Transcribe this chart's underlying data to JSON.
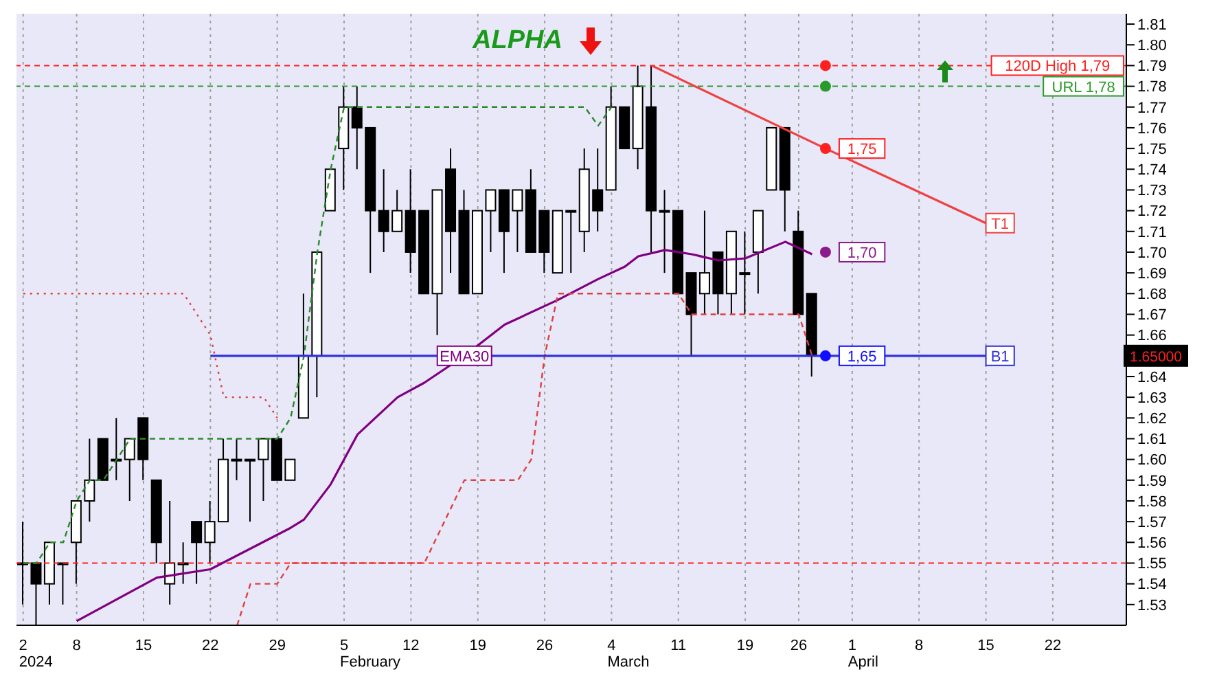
{
  "chart_data": {
    "type": "candlestick",
    "title": "ALPHA",
    "categories": [
      "2",
      null,
      null,
      null,
      "8",
      null,
      null,
      null,
      null,
      "15",
      null,
      null,
      null,
      null,
      "22",
      null,
      null,
      null,
      null,
      "29",
      null,
      null,
      null,
      null,
      "5",
      null,
      null,
      null,
      null,
      "12",
      null,
      null,
      null,
      null,
      "19",
      null,
      null,
      null,
      null,
      "26",
      null,
      null,
      null,
      null,
      "4",
      null,
      null,
      null,
      null,
      "11",
      null,
      null,
      null,
      null,
      "19",
      null,
      null,
      null,
      "26",
      null,
      null,
      null,
      "1",
      null,
      null,
      null,
      null,
      "8",
      null,
      null,
      null,
      null,
      "15",
      null,
      null,
      null,
      null,
      "22",
      null,
      null,
      null,
      null,
      null
    ],
    "ylim": [
      1.52,
      1.815
    ],
    "yticks": [
      1.53,
      1.54,
      1.55,
      1.56,
      1.57,
      1.58,
      1.59,
      {
        "value": 1.6,
        "label": "1.60"
      },
      1.61,
      1.62,
      1.63,
      1.64,
      {
        "value": 1.65,
        "label": null
      },
      1.66,
      1.67,
      1.68,
      1.69,
      {
        "value": 1.7,
        "label": "1.70"
      },
      1.71,
      1.72,
      1.73,
      1.74,
      1.75,
      1.76,
      1.77,
      1.78,
      1.79,
      {
        "value": 1.8,
        "label": "1.80"
      },
      1.81
    ],
    "grid": "x",
    "series": [
      {
        "color": "#000000",
        "ohlc": [
          [
            1.55,
            1.57,
            1.53,
            1.55
          ],
          [
            1.55,
            1.55,
            1.52,
            1.54
          ],
          [
            1.54,
            1.56,
            1.53,
            1.56
          ],
          [
            1.55,
            1.55,
            1.53,
            1.55
          ],
          [
            1.56,
            1.58,
            1.54,
            1.58
          ],
          [
            1.58,
            1.61,
            1.57,
            1.59
          ],
          [
            1.61,
            1.61,
            1.59,
            1.59
          ],
          [
            1.6,
            1.62,
            1.59,
            1.6
          ],
          [
            1.6,
            1.61,
            1.58,
            1.61
          ],
          [
            1.62,
            1.62,
            1.59,
            1.6
          ],
          [
            1.59,
            1.59,
            1.55,
            1.56
          ],
          [
            1.54,
            1.58,
            1.53,
            1.55
          ],
          [
            1.55,
            1.56,
            1.54,
            1.55
          ],
          [
            1.57,
            1.57,
            1.54,
            1.56
          ],
          [
            1.56,
            1.58,
            1.55,
            1.57
          ],
          [
            1.57,
            1.61,
            1.57,
            1.6
          ],
          [
            1.6,
            1.61,
            1.59,
            1.6
          ],
          [
            1.6,
            1.6,
            1.57,
            1.6
          ],
          [
            1.6,
            1.61,
            1.58,
            1.61
          ],
          [
            1.61,
            1.61,
            1.59,
            1.59
          ],
          [
            1.59,
            1.6,
            1.59,
            1.6
          ],
          [
            1.62,
            1.68,
            1.62,
            1.65
          ],
          [
            1.65,
            1.7,
            1.63,
            1.7
          ],
          [
            1.72,
            1.74,
            1.72,
            1.74
          ],
          [
            1.75,
            1.78,
            1.73,
            1.77
          ],
          [
            1.77,
            1.78,
            1.74,
            1.76
          ],
          [
            1.76,
            1.76,
            1.69,
            1.72
          ],
          [
            1.72,
            1.74,
            1.7,
            1.71
          ],
          [
            1.71,
            1.73,
            1.71,
            1.72
          ],
          [
            1.72,
            1.74,
            1.69,
            1.7
          ],
          [
            1.72,
            1.72,
            1.68,
            1.68
          ],
          [
            1.68,
            1.73,
            1.66,
            1.73
          ],
          [
            1.74,
            1.75,
            1.69,
            1.71
          ],
          [
            1.72,
            1.73,
            1.68,
            1.68
          ],
          [
            1.68,
            1.72,
            1.68,
            1.72
          ],
          [
            1.72,
            1.73,
            1.7,
            1.73
          ],
          [
            1.73,
            1.73,
            1.69,
            1.71
          ],
          [
            1.72,
            1.73,
            1.7,
            1.73
          ],
          [
            1.73,
            1.74,
            1.7,
            1.7
          ],
          [
            1.72,
            1.72,
            1.69,
            1.7
          ],
          [
            1.69,
            1.72,
            1.69,
            1.72
          ],
          [
            1.72,
            1.72,
            1.69,
            1.72
          ],
          [
            1.71,
            1.75,
            1.7,
            1.74
          ],
          [
            1.73,
            1.75,
            1.71,
            1.72
          ],
          [
            1.73,
            1.78,
            1.73,
            1.77
          ],
          [
            1.77,
            1.77,
            1.75,
            1.75
          ],
          [
            1.75,
            1.79,
            1.74,
            1.78
          ],
          [
            1.77,
            1.79,
            1.7,
            1.72
          ],
          [
            1.72,
            1.73,
            1.69,
            1.72
          ],
          [
            1.72,
            1.72,
            1.68,
            1.68
          ],
          [
            1.69,
            1.69,
            1.65,
            1.67
          ],
          [
            1.68,
            1.72,
            1.67,
            1.69
          ],
          [
            1.7,
            1.7,
            1.67,
            1.68
          ],
          [
            1.68,
            1.71,
            1.67,
            1.71
          ],
          [
            1.69,
            1.71,
            1.67,
            1.69
          ],
          [
            1.7,
            1.72,
            1.68,
            1.72
          ],
          [
            1.73,
            1.76,
            1.73,
            1.76
          ],
          [
            1.76,
            1.76,
            1.71,
            1.73
          ],
          [
            1.71,
            1.72,
            1.67,
            1.67
          ],
          [
            1.68,
            1.68,
            1.64,
            1.65
          ],
          null,
          null,
          null,
          null,
          null,
          null,
          null,
          null,
          null,
          null,
          null,
          null,
          null,
          null,
          null,
          null,
          null,
          null,
          null,
          null,
          null,
          null,
          null
        ],
        "colors": [
          "#ffffff",
          "#000000",
          "#ffffff",
          "#ffffff",
          "#ffffff",
          "#ffffff",
          "#000000",
          "#ffffff",
          "#ffffff",
          "#000000",
          "#000000",
          "#ffffff",
          "#ffffff",
          "#000000",
          "#ffffff",
          "#ffffff",
          "#ffffff",
          "#ffffff",
          "#ffffff",
          "#000000",
          "#ffffff",
          "#ffffff",
          "#ffffff",
          "#ffffff",
          "#ffffff",
          "#000000",
          "#000000",
          "#000000",
          "#ffffff",
          "#000000",
          "#000000",
          "#ffffff",
          "#000000",
          "#000000",
          "#ffffff",
          "#ffffff",
          "#000000",
          "#ffffff",
          "#000000",
          "#000000",
          "#ffffff",
          "#ffffff",
          "#ffffff",
          "#000000",
          "#ffffff",
          "#000000",
          "#ffffff",
          "#000000",
          "#ffffff",
          "#000000",
          "#000000",
          "#ffffff",
          "#000000",
          "#ffffff",
          "#ffffff",
          "#ffffff",
          "#ffffff",
          "#000000",
          "#000000",
          "#000000",
          null,
          null,
          null,
          null,
          null,
          null,
          null,
          null,
          null,
          null,
          null,
          null,
          null,
          null,
          null,
          null,
          null,
          null,
          null,
          null,
          null,
          null,
          null
        ]
      },
      {
        "type": "line",
        "name": "EMA30",
        "color": "#800080",
        "line_style": "solid",
        "values": [
          null,
          null,
          null,
          null,
          1.522,
          null,
          null,
          null,
          null,
          null,
          1.543,
          null,
          null,
          null,
          1.547,
          null,
          null,
          null,
          null,
          null,
          1.567,
          1.571,
          null,
          1.588,
          null,
          1.612,
          null,
          null,
          1.63,
          null,
          1.637,
          null,
          null,
          1.65,
          null,
          null,
          1.665,
          null,
          null,
          null,
          1.677,
          null,
          null,
          1.687,
          null,
          1.693,
          1.698,
          null,
          1.701,
          null,
          1.699,
          null,
          1.696,
          null,
          1.697,
          null,
          null,
          1.705,
          null,
          1.699,
          null,
          null,
          null,
          null,
          null,
          null,
          null,
          null,
          null,
          null,
          null,
          null,
          null,
          null,
          null,
          null,
          null,
          null,
          null,
          null,
          null,
          null,
          null
        ]
      },
      {
        "type": "line",
        "color": "#2a8a2a",
        "line_style": "dashed",
        "values": [
          1.55,
          1.55,
          1.56,
          1.56,
          1.58,
          1.59,
          1.59,
          1.6,
          1.61,
          1.61,
          null,
          null,
          null,
          null,
          null,
          null,
          null,
          null,
          null,
          1.61,
          1.62,
          1.65,
          1.7,
          1.74,
          1.77,
          null,
          null,
          null,
          null,
          null,
          null,
          null,
          null,
          null,
          null,
          null,
          null,
          null,
          null,
          null,
          null,
          null,
          1.77,
          1.761,
          1.77,
          null,
          null,
          null,
          null,
          null,
          null,
          null,
          null,
          null,
          null,
          null,
          null,
          null,
          null,
          null,
          null,
          null,
          null,
          null,
          null,
          null,
          null,
          null,
          null,
          null,
          null,
          null,
          null,
          null,
          null,
          null,
          null,
          null,
          null,
          null,
          null,
          null,
          null
        ]
      },
      {
        "type": "line",
        "color": "#e04040",
        "line_style": "dotted",
        "values": [
          1.68,
          null,
          null,
          null,
          null,
          null,
          null,
          null,
          null,
          null,
          null,
          null,
          1.68,
          1.67,
          1.66,
          1.63,
          null,
          null,
          1.63,
          1.62,
          null,
          null,
          null,
          null,
          null,
          null,
          null,
          null,
          null,
          null,
          null,
          null,
          null,
          null,
          null,
          null,
          null,
          null,
          null,
          null,
          null,
          null,
          null,
          null,
          null,
          null,
          null,
          null,
          null,
          null,
          null,
          null,
          null,
          null,
          null,
          null,
          null,
          null,
          null,
          null,
          null,
          null,
          null,
          null,
          null,
          null,
          null,
          null,
          null,
          null,
          null,
          null,
          null,
          null,
          null,
          null,
          null,
          null,
          null,
          null,
          null,
          null,
          null
        ]
      },
      {
        "type": "line",
        "color": "#e04040",
        "line_style": "dashed",
        "values": [
          null,
          null,
          null,
          null,
          null,
          null,
          null,
          null,
          null,
          null,
          null,
          null,
          null,
          null,
          null,
          null,
          1.52,
          1.54,
          null,
          1.54,
          1.55,
          null,
          null,
          null,
          null,
          null,
          null,
          null,
          null,
          null,
          1.55,
          null,
          null,
          1.59,
          null,
          null,
          null,
          1.59,
          1.6,
          1.65,
          1.68,
          null,
          null,
          null,
          null,
          null,
          null,
          null,
          null,
          1.68,
          1.67,
          null,
          null,
          null,
          null,
          null,
          null,
          null,
          1.67,
          1.65,
          null,
          null,
          null,
          null,
          null,
          null,
          null,
          null,
          null,
          null,
          null,
          null,
          null,
          null,
          null,
          null,
          null,
          null,
          null,
          null,
          null,
          null,
          null
        ]
      },
      {
        "type": "line",
        "name": "T1",
        "color": "#f04040",
        "line_style": "solid",
        "values": [
          null,
          null,
          null,
          null,
          null,
          null,
          null,
          null,
          null,
          null,
          null,
          null,
          null,
          null,
          null,
          null,
          null,
          null,
          null,
          null,
          null,
          null,
          null,
          null,
          null,
          null,
          null,
          null,
          null,
          null,
          null,
          null,
          null,
          null,
          null,
          null,
          null,
          null,
          null,
          null,
          null,
          null,
          null,
          null,
          null,
          null,
          null,
          1.79,
          null,
          null,
          null,
          null,
          null,
          null,
          null,
          null,
          null,
          null,
          null,
          null,
          1.75,
          null,
          null,
          null,
          null,
          null,
          null,
          null,
          null,
          null,
          null,
          null,
          1.714,
          null,
          null,
          null,
          null,
          null,
          null,
          null,
          null,
          null,
          null
        ]
      },
      {
        "type": "line",
        "name": "B1",
        "color": "#3030e0",
        "line_style": "solid",
        "values": [
          null,
          null,
          null,
          null,
          null,
          null,
          null,
          null,
          null,
          null,
          null,
          null,
          null,
          null,
          1.65,
          null,
          null,
          null,
          null,
          null,
          null,
          null,
          null,
          null,
          null,
          null,
          null,
          null,
          null,
          null,
          null,
          null,
          null,
          null,
          null,
          null,
          null,
          null,
          null,
          null,
          null,
          null,
          null,
          null,
          null,
          null,
          null,
          null,
          null,
          null,
          null,
          null,
          null,
          null,
          null,
          null,
          null,
          null,
          null,
          null,
          null,
          null,
          null,
          null,
          null,
          null,
          null,
          null,
          null,
          null,
          null,
          null,
          1.65,
          null,
          null,
          null,
          null,
          null,
          null,
          null,
          null,
          null,
          null
        ]
      },
      {
        "type": "scatter",
        "marker": "circle",
        "color": "#ff2020",
        "values": [
          null,
          null,
          null,
          null,
          null,
          null,
          null,
          null,
          null,
          null,
          null,
          null,
          null,
          null,
          null,
          null,
          null,
          null,
          null,
          null,
          null,
          null,
          null,
          null,
          null,
          null,
          null,
          null,
          null,
          null,
          null,
          null,
          null,
          null,
          null,
          null,
          null,
          null,
          null,
          null,
          null,
          null,
          null,
          null,
          null,
          null,
          null,
          null,
          null,
          null,
          null,
          null,
          null,
          null,
          null,
          null,
          null,
          null,
          null,
          null,
          1.79,
          null,
          null,
          null,
          null,
          null,
          null,
          null,
          null,
          null,
          null,
          null,
          null,
          null,
          null,
          null,
          null,
          null,
          null,
          null,
          null,
          null,
          null
        ]
      },
      {
        "type": "scatter",
        "marker": "circle",
        "color": "#2a9a2a",
        "values": [
          null,
          null,
          null,
          null,
          null,
          null,
          null,
          null,
          null,
          null,
          null,
          null,
          null,
          null,
          null,
          null,
          null,
          null,
          null,
          null,
          null,
          null,
          null,
          null,
          null,
          null,
          null,
          null,
          null,
          null,
          null,
          null,
          null,
          null,
          null,
          null,
          null,
          null,
          null,
          null,
          null,
          null,
          null,
          null,
          null,
          null,
          null,
          null,
          null,
          null,
          null,
          null,
          null,
          null,
          null,
          null,
          null,
          null,
          null,
          null,
          1.78,
          null,
          null,
          null,
          null,
          null,
          null,
          null,
          null,
          null,
          null,
          null,
          null,
          null,
          null,
          null,
          null,
          null,
          null,
          null,
          null,
          null,
          null
        ]
      },
      {
        "type": "scatter",
        "marker": "circle",
        "color": "#ff2020",
        "values": [
          null,
          null,
          null,
          null,
          null,
          null,
          null,
          null,
          null,
          null,
          null,
          null,
          null,
          null,
          null,
          null,
          null,
          null,
          null,
          null,
          null,
          null,
          null,
          null,
          null,
          null,
          null,
          null,
          null,
          null,
          null,
          null,
          null,
          null,
          null,
          null,
          null,
          null,
          null,
          null,
          null,
          null,
          null,
          null,
          null,
          null,
          null,
          null,
          null,
          null,
          null,
          null,
          null,
          null,
          null,
          null,
          null,
          null,
          null,
          null,
          1.75,
          null,
          null,
          null,
          null,
          null,
          null,
          null,
          null,
          null,
          null,
          null,
          null,
          null,
          null,
          null,
          null,
          null,
          null,
          null,
          null,
          null,
          null
        ],
        "value_labels": [
          null,
          null,
          null,
          null,
          null,
          null,
          null,
          null,
          null,
          null,
          null,
          null,
          null,
          null,
          null,
          null,
          null,
          null,
          null,
          null,
          null,
          null,
          null,
          null,
          null,
          null,
          null,
          null,
          null,
          null,
          null,
          null,
          null,
          null,
          null,
          null,
          null,
          null,
          null,
          null,
          null,
          null,
          null,
          null,
          null,
          null,
          null,
          null,
          null,
          null,
          null,
          null,
          null,
          null,
          null,
          null,
          null,
          null,
          null,
          null,
          "1,75",
          null,
          null,
          null,
          null,
          null,
          null,
          null,
          null,
          null,
          null,
          null,
          null,
          null,
          null,
          null,
          null,
          null,
          null,
          null,
          null,
          null,
          null
        ]
      },
      {
        "type": "scatter",
        "marker": "circle",
        "color": "#8b1a8b",
        "values": [
          null,
          null,
          null,
          null,
          null,
          null,
          null,
          null,
          null,
          null,
          null,
          null,
          null,
          null,
          null,
          null,
          null,
          null,
          null,
          null,
          null,
          null,
          null,
          null,
          null,
          null,
          null,
          null,
          null,
          null,
          null,
          null,
          null,
          null,
          null,
          null,
          null,
          null,
          null,
          null,
          null,
          null,
          null,
          null,
          null,
          null,
          null,
          null,
          null,
          null,
          null,
          null,
          null,
          null,
          null,
          null,
          null,
          null,
          null,
          null,
          1.7,
          null,
          null,
          null,
          null,
          null,
          null,
          null,
          null,
          null,
          null,
          null,
          null,
          null,
          null,
          null,
          null,
          null,
          null,
          null,
          null,
          null,
          null
        ],
        "value_labels": [
          null,
          null,
          null,
          null,
          null,
          null,
          null,
          null,
          null,
          null,
          null,
          null,
          null,
          null,
          null,
          null,
          null,
          null,
          null,
          null,
          null,
          null,
          null,
          null,
          null,
          null,
          null,
          null,
          null,
          null,
          null,
          null,
          null,
          null,
          null,
          null,
          null,
          null,
          null,
          null,
          null,
          null,
          null,
          null,
          null,
          null,
          null,
          null,
          null,
          null,
          null,
          null,
          null,
          null,
          null,
          null,
          null,
          null,
          null,
          null,
          "1,70",
          null,
          null,
          null,
          null,
          null,
          null,
          null,
          null,
          null,
          null,
          null,
          null,
          null,
          null,
          null,
          null,
          null,
          null,
          null,
          null,
          null,
          null
        ]
      },
      {
        "type": "scatter",
        "marker": "circle",
        "color": "#1010ff",
        "values": [
          null,
          null,
          null,
          null,
          null,
          null,
          null,
          null,
          null,
          null,
          null,
          null,
          null,
          null,
          null,
          null,
          null,
          null,
          null,
          null,
          null,
          null,
          null,
          null,
          null,
          null,
          null,
          null,
          null,
          null,
          null,
          null,
          null,
          null,
          null,
          null,
          null,
          null,
          null,
          null,
          null,
          null,
          null,
          null,
          null,
          null,
          null,
          null,
          null,
          null,
          null,
          null,
          null,
          null,
          null,
          null,
          null,
          null,
          null,
          null,
          1.65,
          null,
          null,
          null,
          null,
          null,
          null,
          null,
          null,
          null,
          null,
          null,
          null,
          null,
          null,
          null,
          null,
          null,
          null,
          null,
          null,
          null,
          null
        ],
        "value_labels": [
          null,
          null,
          null,
          null,
          null,
          null,
          null,
          null,
          null,
          null,
          null,
          null,
          null,
          null,
          null,
          null,
          null,
          null,
          null,
          null,
          null,
          null,
          null,
          null,
          null,
          null,
          null,
          null,
          null,
          null,
          null,
          null,
          null,
          null,
          null,
          null,
          null,
          null,
          null,
          null,
          null,
          null,
          null,
          null,
          null,
          null,
          null,
          null,
          null,
          null,
          null,
          null,
          null,
          null,
          null,
          null,
          null,
          null,
          null,
          null,
          "1,65",
          null,
          null,
          null,
          null,
          null,
          null,
          null,
          null,
          null,
          null,
          null,
          null,
          null,
          null,
          null,
          null,
          null,
          null,
          null,
          null,
          null,
          null
        ]
      }
    ],
    "ref_lines": [
      {
        "axis": "y",
        "value": 1.79,
        "label": "120D High 1,79",
        "color": "#ff2020",
        "line_style": "dashed"
      },
      {
        "axis": "y",
        "value": 1.78,
        "label": "URL 1,78",
        "color": "#2a9a2a",
        "line_style": "dashed"
      },
      {
        "axis": "y",
        "value": 1.55,
        "color": "#ff2020",
        "line_style": "dashed"
      }
    ],
    "annotations": [
      "2024",
      "February",
      "March",
      "April",
      "1.65000"
    ]
  }
}
